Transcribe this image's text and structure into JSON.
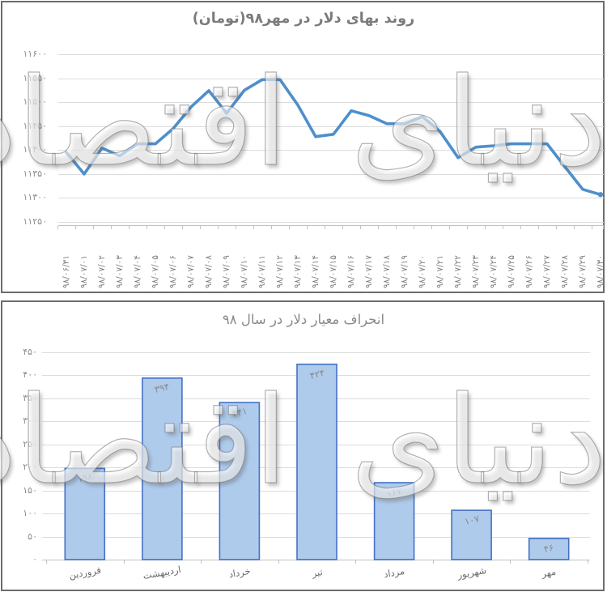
{
  "watermark": {
    "text": "دنیای اقتصاد"
  },
  "colors": {
    "line": "#4E8FCB",
    "bar_fill": "#AECBEC",
    "bar_border": "#4472C4",
    "gridline": "#dcdcdc",
    "axis": "#c2c2c2",
    "tick_text": "#8c8c8c"
  },
  "chart_data": [
    {
      "type": "line",
      "title": "روند بهای دلار در مهر۹۸(تومان)",
      "x": [
        "۹۸/۰۶/۳۱",
        "۹۸/۰۷/۰۱",
        "۹۸/۰۷/۰۲",
        "۹۸/۰۷/۰۳",
        "۹۸/۰۷/۰۴",
        "۹۸/۰۷/۰۵",
        "۹۸/۰۷/۰۶",
        "۹۸/۰۷/۰۷",
        "۹۸/۰۷/۰۸",
        "۹۸/۰۷/۰۹",
        "۹۸/۰۷/۱۰",
        "۹۸/۰۷/۱۱",
        "۹۸/۰۷/۱۲",
        "۹۸/۰۷/۱۳",
        "۹۸/۰۷/۱۴",
        "۹۸/۰۷/۱۵",
        "۹۸/۰۷/۱۶",
        "۹۸/۰۷/۱۷",
        "۹۸/۰۷/۱۸",
        "۹۸/۰۷/۱۹",
        "۹۸/۰۷/۲۰",
        "۹۸/۰۷/۲۱",
        "۹۸/۰۷/۲۲",
        "۹۸/۰۷/۲۳",
        "۹۸/۰۷/۲۴",
        "۹۸/۰۷/۲۵",
        "۹۸/۰۷/۲۶",
        "۹۸/۰۷/۲۷",
        "۹۸/۰۷/۲۸",
        "۹۸/۰۷/۲۹",
        "۹۸/۰۷/۳۰"
      ],
      "values": [
        11395,
        11350,
        11404,
        11388,
        11413,
        11413,
        11445,
        11490,
        11524,
        11477,
        11525,
        11547,
        11547,
        11494,
        11428,
        11433,
        11482,
        11472,
        11455,
        11455,
        11470,
        11438,
        11384,
        11406,
        11409,
        11413,
        11413,
        11413,
        11365,
        11318,
        11307
      ],
      "ylim": [
        11250,
        11600
      ],
      "ytick_step": 50,
      "ytick_labels": [
        "۱۱۲۵۰",
        "۱۱۳۰۰",
        "۱۱۳۵۰",
        "۱۱۴۰۰",
        "۱۱۴۵۰",
        "۱۱۵۰۰",
        "۱۱۵۵۰",
        "۱۱۶۰۰"
      ],
      "grid": true,
      "legend": "none"
    },
    {
      "type": "bar",
      "title": "انحراف معیار دلار در سال ۹۸",
      "categories": [
        "فروردین",
        "اردیبهشت",
        "خرداد",
        "تیر",
        "مرداد",
        "شهریور",
        "مهر"
      ],
      "values": [
        198,
        394,
        341,
        424,
        167,
        107,
        46
      ],
      "value_labels": [
        "۱۹۸",
        "۳۹۴",
        "۳۴۱",
        "۴۲۴",
        "۱۶۷",
        "۱۰۷",
        "۴۶"
      ],
      "ylim": [
        0,
        450
      ],
      "ytick_step": 50,
      "ytick_labels": [
        "۰",
        "۵۰",
        "۱۰۰",
        "۱۵۰",
        "۲۰۰",
        "۲۵۰",
        "۳۰۰",
        "۳۵۰",
        "۴۰۰",
        "۴۵۰"
      ],
      "grid": true,
      "legend": "none"
    }
  ]
}
